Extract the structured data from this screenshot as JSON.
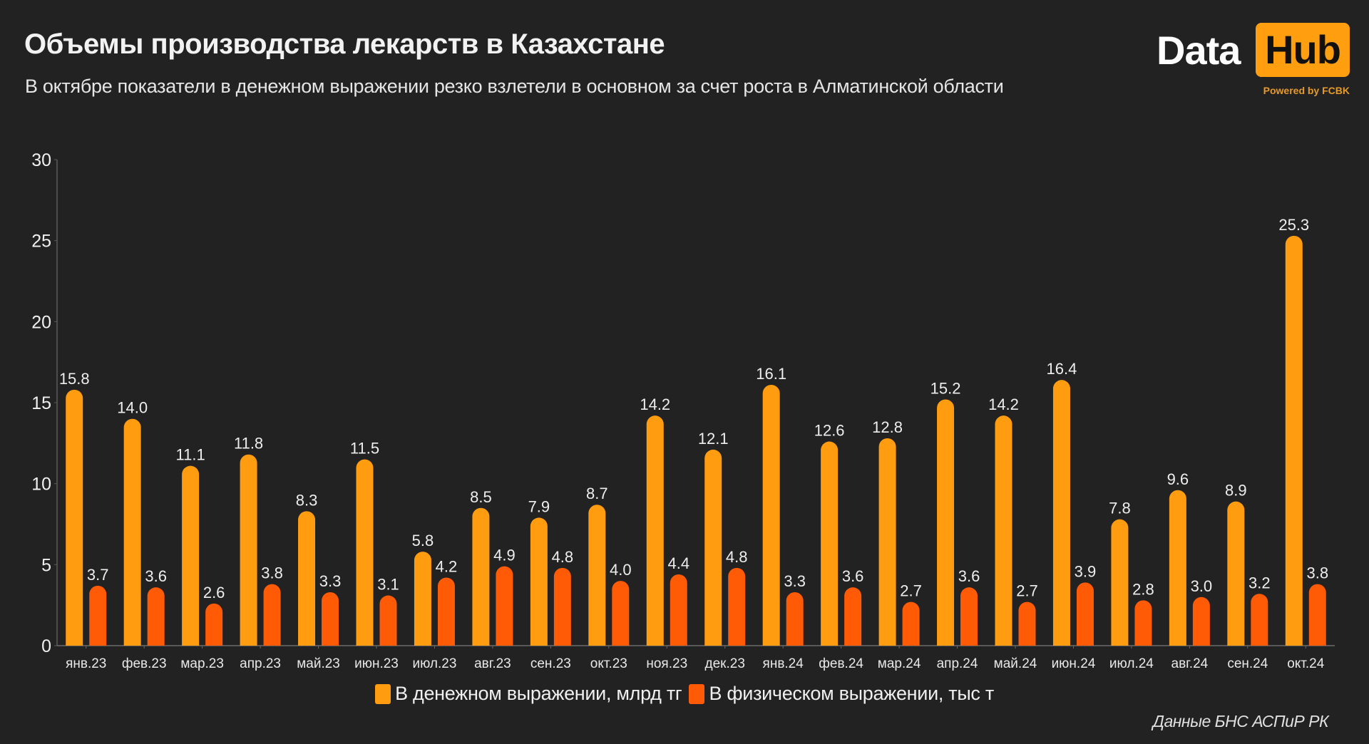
{
  "header": {
    "title": "Объемы производства лекарств в Казахстане",
    "subtitle": "В октябре показатели в денежном выражении резко взлетели в основном за счет роста в Алматинской области"
  },
  "logo": {
    "word1": "Data",
    "word2": "Hub",
    "tagline": "Powered by FCBK",
    "accent": "#ff9f10"
  },
  "source": "Данные БНС АСПиР РК",
  "chart_data": {
    "type": "bar",
    "title": "Объемы производства лекарств в Казахстане",
    "subtitle": "В октябре показатели в денежном выражении резко взлетели в основном за счет роста в Алматинской области",
    "xlabel": "",
    "ylabel": "",
    "ylim": [
      0,
      30
    ],
    "yticks": [
      0,
      5,
      10,
      15,
      20,
      25,
      30
    ],
    "grid": false,
    "legend_position": "bottom",
    "categories": [
      "янв.23",
      "фев.23",
      "мар.23",
      "апр.23",
      "май.23",
      "июн.23",
      "июл.23",
      "авг.23",
      "сен.23",
      "окт.23",
      "ноя.23",
      "дек.23",
      "янв.24",
      "фев.24",
      "мар.24",
      "апр.24",
      "май.24",
      "июн.24",
      "июл.24",
      "авг.24",
      "сен.24",
      "окт.24"
    ],
    "series": [
      {
        "name": "В денежном выражении, млрд тг",
        "color": "#ff9c0f",
        "values": [
          15.8,
          14.0,
          11.1,
          11.8,
          8.3,
          11.5,
          5.8,
          8.5,
          7.9,
          8.7,
          14.2,
          12.1,
          16.1,
          12.6,
          12.8,
          15.2,
          14.2,
          16.4,
          7.8,
          9.6,
          8.9,
          25.3
        ],
        "labels": [
          "15.8",
          "14.0",
          "11.1",
          "11.8",
          "8.3",
          "11.5",
          "5.8",
          "8.5",
          "7.9",
          "8.7",
          "14.2",
          "12.1",
          "16.1",
          "12.6",
          "12.8",
          "15.2",
          "14.2",
          "16.4",
          "7.8",
          "9.6",
          "8.9",
          "25.3"
        ]
      },
      {
        "name": "В физическом выражении, тыс т",
        "color": "#ff5a05",
        "values": [
          3.7,
          3.6,
          2.6,
          3.8,
          3.3,
          3.1,
          4.2,
          4.9,
          4.8,
          4.0,
          4.4,
          4.8,
          3.3,
          3.6,
          2.7,
          3.6,
          2.7,
          3.9,
          2.8,
          3.0,
          3.2,
          3.8
        ],
        "labels": [
          "3.7",
          "3.6",
          "2.6",
          "3.8",
          "3.3",
          "3.1",
          "4.2",
          "4.9",
          "4.8",
          "4.0",
          "4.4",
          "4.8",
          "3.3",
          "3.6",
          "2.7",
          "3.6",
          "2.7",
          "3.9",
          "2.8",
          "3.0",
          "3.2",
          "3.8"
        ]
      }
    ]
  }
}
